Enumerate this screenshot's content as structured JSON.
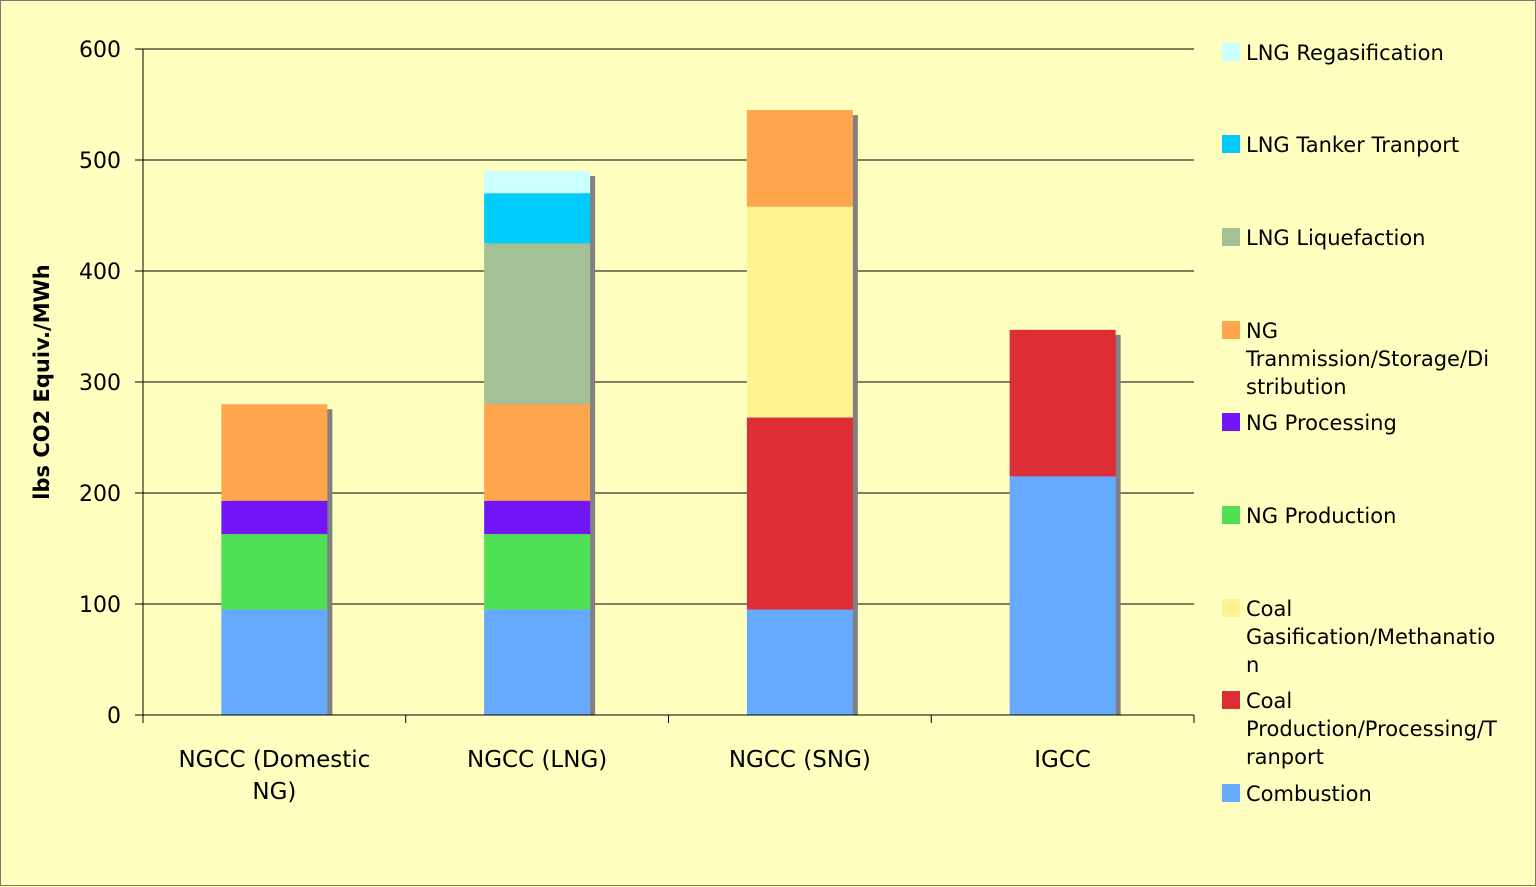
{
  "chart_data": {
    "type": "bar",
    "stacked": true,
    "ylabel": "lbs CO2 Equiv./MWh",
    "ylim": [
      0,
      600
    ],
    "yticks": [
      0,
      100,
      200,
      300,
      400,
      500,
      600
    ],
    "grid": true,
    "legend_position": "right",
    "categories": [
      {
        "lines": [
          "NGCC (Domestic",
          "NG)"
        ]
      },
      {
        "lines": [
          "NGCC (LNG)"
        ]
      },
      {
        "lines": [
          "NGCC (SNG)"
        ]
      },
      {
        "lines": [
          "IGCC"
        ]
      }
    ],
    "series": [
      {
        "name": "Combustion",
        "legend_lines": [
          "Combustion"
        ],
        "color": "#66aaff",
        "values": [
          95,
          95,
          95,
          215
        ]
      },
      {
        "name": "Coal Production/Processing/Tranport",
        "legend_lines": [
          "Coal",
          "Production/Processing/T",
          "ranport"
        ],
        "color": "#dd2e36",
        "values": [
          0,
          0,
          173,
          132
        ]
      },
      {
        "name": "Coal Gasification/Methanation",
        "legend_lines": [
          "Coal",
          "Gasification/Methanatio",
          "n"
        ],
        "color": "#fff291",
        "values": [
          0,
          0,
          190,
          0
        ]
      },
      {
        "name": "NG Production",
        "legend_lines": [
          "NG Production"
        ],
        "color": "#4fe056",
        "values": [
          68,
          68,
          0,
          0
        ]
      },
      {
        "name": "NG Processing",
        "legend_lines": [
          "NG Processing"
        ],
        "color": "#7216f5",
        "values": [
          30,
          30,
          0,
          0
        ]
      },
      {
        "name": "NG Tranmission/Storage/Distribution",
        "legend_lines": [
          "NG",
          "Tranmission/Storage/Di",
          "stribution"
        ],
        "color": "#ffa64d",
        "values": [
          87,
          87,
          87,
          0
        ]
      },
      {
        "name": "LNG Liquefaction",
        "legend_lines": [
          "LNG Liquefaction"
        ],
        "color": "#a4c195",
        "values": [
          0,
          145,
          0,
          0
        ]
      },
      {
        "name": "LNG Tanker Tranport",
        "legend_lines": [
          "LNG Tanker Tranport"
        ],
        "color": "#00ccff",
        "values": [
          0,
          45,
          0,
          0
        ]
      },
      {
        "name": "LNG Regasification",
        "legend_lines": [
          "LNG Regasification"
        ],
        "color": "#ccffff",
        "values": [
          0,
          20,
          0,
          0
        ]
      }
    ]
  }
}
